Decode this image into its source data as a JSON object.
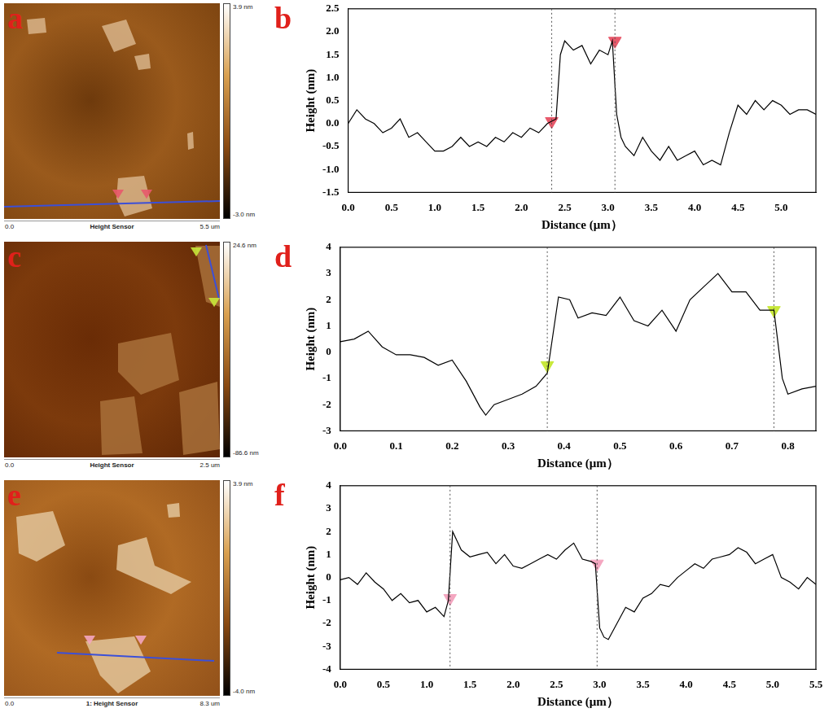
{
  "chart_data": [
    {
      "type": "line",
      "panel_label": "b",
      "x_label": "Distance (μm）",
      "y_label": "Height (nm)",
      "color": "#000000",
      "grid": false,
      "x": [
        0,
        0.1,
        0.2,
        0.3,
        0.4,
        0.5,
        0.6,
        0.7,
        0.8,
        0.9,
        1.0,
        1.1,
        1.2,
        1.3,
        1.4,
        1.5,
        1.6,
        1.7,
        1.8,
        1.9,
        2.0,
        2.1,
        2.2,
        2.3,
        2.4,
        2.45,
        2.5,
        2.6,
        2.7,
        2.8,
        2.9,
        3.0,
        3.05,
        3.1,
        3.15,
        3.2,
        3.3,
        3.4,
        3.5,
        3.6,
        3.7,
        3.8,
        3.9,
        4.0,
        4.1,
        4.2,
        4.3,
        4.4,
        4.5,
        4.6,
        4.7,
        4.8,
        4.9,
        5.0,
        5.1,
        5.2,
        5.3,
        5.4
      ],
      "values": [
        0.0,
        0.3,
        0.1,
        0.0,
        -0.2,
        -0.1,
        0.1,
        -0.3,
        -0.2,
        -0.4,
        -0.6,
        -0.6,
        -0.5,
        -0.3,
        -0.5,
        -0.4,
        -0.5,
        -0.3,
        -0.4,
        -0.2,
        -0.3,
        -0.1,
        -0.2,
        0.0,
        0.1,
        1.5,
        1.8,
        1.6,
        1.7,
        1.3,
        1.6,
        1.5,
        1.8,
        0.2,
        -0.3,
        -0.5,
        -0.7,
        -0.3,
        -0.6,
        -0.8,
        -0.5,
        -0.8,
        -0.7,
        -0.6,
        -0.9,
        -0.8,
        -0.9,
        -0.2,
        0.4,
        0.2,
        0.5,
        0.3,
        0.5,
        0.4,
        0.2,
        0.3,
        0.3,
        0.2
      ],
      "xlim": [
        0,
        5.4
      ],
      "xticks": [
        {
          "value": 0,
          "label": "0.0"
        },
        0.5,
        {
          "value": 1,
          "label": "1.0"
        },
        1.5,
        {
          "value": 2,
          "label": "2.0"
        },
        2.5,
        {
          "value": 3,
          "label": "3.0"
        },
        3.5,
        {
          "value": 4,
          "label": "4.0"
        },
        4.5,
        {
          "value": 5,
          "label": "5.0"
        }
      ],
      "ylim": [
        -1.5,
        2.5
      ],
      "yticks": [
        -1.5,
        {
          "value": -1,
          "label": "-1.0"
        },
        -0.5,
        {
          "value": 0,
          "label": "0.0"
        },
        0.5,
        {
          "value": 1,
          "label": "1.0"
        },
        1.5,
        {
          "value": 2,
          "label": "2.0"
        },
        2.5
      ],
      "markers": {
        "x": [
          2.35,
          3.08
        ],
        "y": [
          0.05,
          1.8
        ],
        "color": "#e8596b"
      }
    },
    {
      "type": "line",
      "panel_label": "d",
      "x_label": "Distance (μm）",
      "y_label": "Height (nm)",
      "color": "#000000",
      "grid": false,
      "x": [
        0,
        0.025,
        0.05,
        0.075,
        0.1,
        0.125,
        0.15,
        0.175,
        0.2,
        0.225,
        0.25,
        0.26,
        0.275,
        0.3,
        0.325,
        0.35,
        0.37,
        0.39,
        0.41,
        0.425,
        0.45,
        0.475,
        0.5,
        0.525,
        0.55,
        0.575,
        0.6,
        0.625,
        0.65,
        0.675,
        0.7,
        0.725,
        0.75,
        0.775,
        0.79,
        0.8,
        0.825,
        0.85
      ],
      "values": [
        0.4,
        0.5,
        0.8,
        0.2,
        -0.1,
        -0.1,
        -0.2,
        -0.5,
        -0.3,
        -1.1,
        -2.1,
        -2.4,
        -2.0,
        -1.8,
        -1.6,
        -1.3,
        -0.8,
        2.1,
        2.0,
        1.3,
        1.5,
        1.4,
        2.1,
        1.2,
        1.0,
        1.6,
        0.8,
        2.0,
        2.5,
        3.0,
        2.3,
        2.3,
        1.6,
        1.6,
        -1.0,
        -1.6,
        -1.4,
        -1.3
      ],
      "xlim": [
        0,
        0.85
      ],
      "xticks": [
        {
          "value": 0,
          "label": "0.0"
        },
        0.1,
        0.2,
        0.3,
        0.4,
        0.5,
        0.6,
        0.7,
        0.8
      ],
      "ylim": [
        -3,
        4
      ],
      "yticks": [
        -3,
        -2,
        -1,
        0,
        1,
        2,
        3,
        4
      ],
      "markers": {
        "x": [
          0.37,
          0.775
        ],
        "y": [
          -0.5,
          1.6
        ],
        "color": "#c8e83a"
      }
    },
    {
      "type": "line",
      "panel_label": "f",
      "x_label": "Distance (μm）",
      "y_label": "Height (nm)",
      "color": "#000000",
      "grid": false,
      "x": [
        0,
        0.1,
        0.2,
        0.3,
        0.4,
        0.5,
        0.6,
        0.7,
        0.8,
        0.9,
        1.0,
        1.1,
        1.2,
        1.25,
        1.3,
        1.35,
        1.4,
        1.5,
        1.6,
        1.7,
        1.8,
        1.9,
        2.0,
        2.1,
        2.2,
        2.3,
        2.4,
        2.5,
        2.6,
        2.7,
        2.8,
        2.9,
        2.95,
        3.0,
        3.05,
        3.1,
        3.2,
        3.3,
        3.4,
        3.5,
        3.6,
        3.7,
        3.8,
        3.9,
        4.0,
        4.1,
        4.2,
        4.3,
        4.4,
        4.5,
        4.6,
        4.7,
        4.8,
        4.9,
        5.0,
        5.1,
        5.2,
        5.3,
        5.4,
        5.5
      ],
      "values": [
        -0.1,
        0.0,
        -0.3,
        0.2,
        -0.2,
        -0.5,
        -1.0,
        -0.7,
        -1.1,
        -1.0,
        -1.5,
        -1.3,
        -1.7,
        -1.0,
        2.0,
        1.6,
        1.2,
        0.9,
        1.0,
        1.1,
        0.6,
        1.0,
        0.5,
        0.4,
        0.6,
        0.8,
        1.0,
        0.8,
        1.2,
        1.5,
        0.8,
        0.7,
        0.6,
        -2.2,
        -2.6,
        -2.7,
        -2.0,
        -1.3,
        -1.5,
        -0.9,
        -0.7,
        -0.3,
        -0.4,
        0.0,
        0.3,
        0.6,
        0.4,
        0.8,
        0.9,
        1.0,
        1.3,
        1.1,
        0.6,
        0.8,
        1.0,
        0.0,
        -0.2,
        -0.5,
        0.0,
        -0.3
      ],
      "xlim": [
        0,
        5.5
      ],
      "xticks": [
        {
          "value": 0,
          "label": "0.0"
        },
        0.5,
        {
          "value": 1,
          "label": "1.0"
        },
        1.5,
        {
          "value": 2,
          "label": "2.0"
        },
        2.5,
        {
          "value": 3,
          "label": "3.0"
        },
        3.5,
        {
          "value": 4,
          "label": "4.0"
        },
        4.5,
        {
          "value": 5,
          "label": "5.0"
        },
        5.5
      ],
      "ylim": [
        -4,
        4
      ],
      "yticks": [
        -4,
        -3,
        -2,
        -1,
        0,
        1,
        2,
        3,
        4
      ],
      "markers": {
        "x": [
          1.27,
          2.97
        ],
        "y": [
          -0.9,
          0.6
        ],
        "color": "#f4a6c0"
      }
    }
  ],
  "images": [
    {
      "panel_label": "a",
      "caption": "Height Sensor",
      "scale_start": "0.0",
      "scale_end": "5.5 um",
      "colorbar_max": "3.9 nm",
      "colorbar_min": "-3.0 nm"
    },
    {
      "panel_label": "c",
      "caption": "Height Sensor",
      "scale_start": "0.0",
      "scale_end": "2.5 um",
      "colorbar_max": "24.6 nm",
      "colorbar_min": "-86.6 nm"
    },
    {
      "panel_label": "e",
      "caption": "1: Height Sensor",
      "scale_start": "0.0",
      "scale_end": "8.3 um",
      "colorbar_max": "3.9 nm",
      "colorbar_min": "-4.0 nm"
    }
  ]
}
